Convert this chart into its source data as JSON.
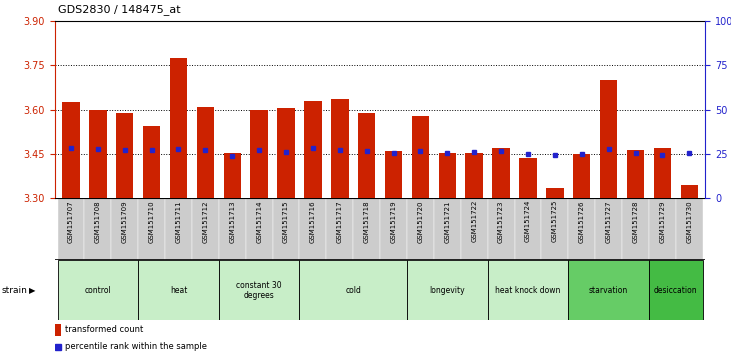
{
  "title": "GDS2830 / 148475_at",
  "samples": [
    "GSM151707",
    "GSM151708",
    "GSM151709",
    "GSM151710",
    "GSM151711",
    "GSM151712",
    "GSM151713",
    "GSM151714",
    "GSM151715",
    "GSM151716",
    "GSM151717",
    "GSM151718",
    "GSM151719",
    "GSM151720",
    "GSM151721",
    "GSM151722",
    "GSM151723",
    "GSM151724",
    "GSM151725",
    "GSM151726",
    "GSM151727",
    "GSM151728",
    "GSM151729",
    "GSM151730"
  ],
  "bar_values": [
    3.625,
    3.6,
    3.59,
    3.545,
    3.775,
    3.61,
    3.455,
    3.6,
    3.605,
    3.63,
    3.635,
    3.59,
    3.46,
    3.58,
    3.455,
    3.455,
    3.47,
    3.435,
    3.335,
    3.45,
    3.7,
    3.465,
    3.47,
    3.345
  ],
  "percentile_values": [
    3.47,
    3.468,
    3.462,
    3.462,
    3.468,
    3.465,
    3.443,
    3.464,
    3.458,
    3.47,
    3.462,
    3.46,
    3.455,
    3.46,
    3.452,
    3.456,
    3.46,
    3.45,
    3.448,
    3.45,
    3.468,
    3.455,
    3.448,
    3.452
  ],
  "groups": [
    {
      "label": "control",
      "start": 0,
      "end": 2,
      "color": "#c8eec8"
    },
    {
      "label": "heat",
      "start": 3,
      "end": 5,
      "color": "#c8eec8"
    },
    {
      "label": "constant 30\ndegrees",
      "start": 6,
      "end": 8,
      "color": "#c8eec8"
    },
    {
      "label": "cold",
      "start": 9,
      "end": 12,
      "color": "#c8eec8"
    },
    {
      "label": "longevity",
      "start": 13,
      "end": 15,
      "color": "#c8eec8"
    },
    {
      "label": "heat knock down",
      "start": 16,
      "end": 18,
      "color": "#c8eec8"
    },
    {
      "label": "starvation",
      "start": 19,
      "end": 21,
      "color": "#66cc66"
    },
    {
      "label": "desiccation",
      "start": 22,
      "end": 23,
      "color": "#44bb44"
    }
  ],
  "ylim_left": [
    3.3,
    3.9
  ],
  "ylim_right": [
    0,
    100
  ],
  "yticks_left": [
    3.3,
    3.45,
    3.6,
    3.75,
    3.9
  ],
  "yticks_right": [
    0,
    25,
    50,
    75,
    100
  ],
  "bar_color": "#cc2200",
  "percentile_color": "#2222cc"
}
